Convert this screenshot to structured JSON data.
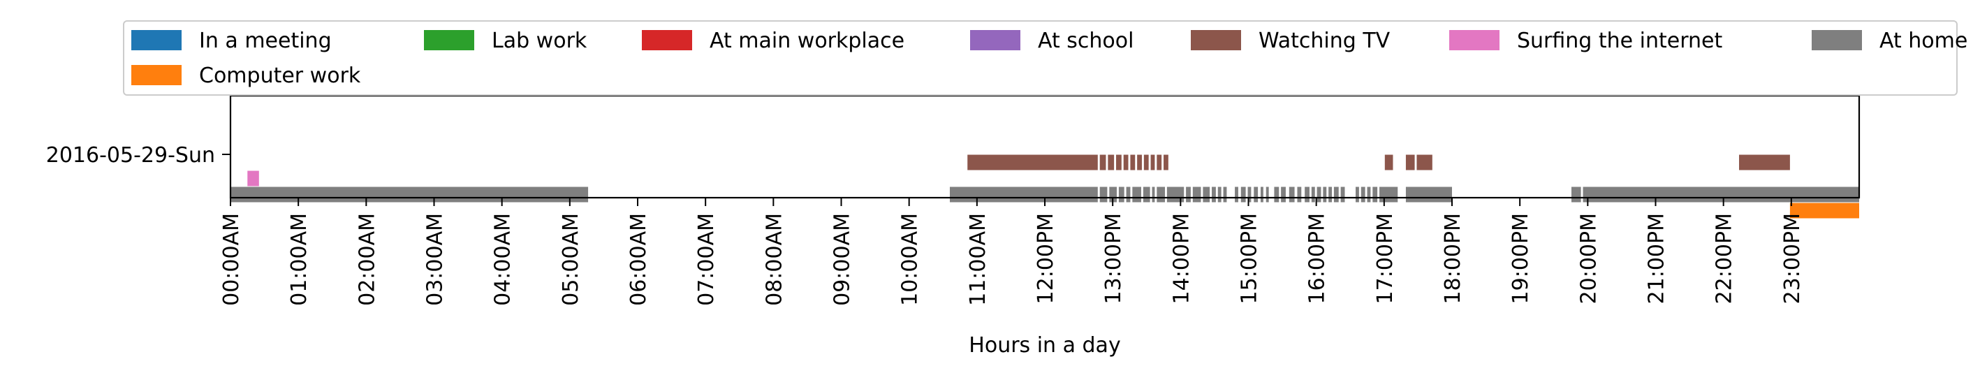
{
  "chart_data": {
    "type": "timeline",
    "title": "",
    "xlabel": "Hours in a day",
    "ylabel": "",
    "xlim": [
      0,
      24
    ],
    "grid": false,
    "legend_position": "top",
    "rows": [
      "2016-05-29-Sun"
    ],
    "x_ticks": [
      {
        "value": 0,
        "label": "00:00AM"
      },
      {
        "value": 1,
        "label": "01:00AM"
      },
      {
        "value": 2,
        "label": "02:00AM"
      },
      {
        "value": 3,
        "label": "03:00AM"
      },
      {
        "value": 4,
        "label": "04:00AM"
      },
      {
        "value": 5,
        "label": "05:00AM"
      },
      {
        "value": 6,
        "label": "06:00AM"
      },
      {
        "value": 7,
        "label": "07:00AM"
      },
      {
        "value": 8,
        "label": "08:00AM"
      },
      {
        "value": 9,
        "label": "09:00AM"
      },
      {
        "value": 10,
        "label": "10:00AM"
      },
      {
        "value": 11,
        "label": "11:00AM"
      },
      {
        "value": 12,
        "label": "12:00PM"
      },
      {
        "value": 13,
        "label": "13:00PM"
      },
      {
        "value": 14,
        "label": "14:00PM"
      },
      {
        "value": 15,
        "label": "15:00PM"
      },
      {
        "value": 16,
        "label": "16:00PM"
      },
      {
        "value": 17,
        "label": "17:00PM"
      },
      {
        "value": 18,
        "label": "18:00PM"
      },
      {
        "value": 19,
        "label": "19:00PM"
      },
      {
        "value": 20,
        "label": "20:00PM"
      },
      {
        "value": 21,
        "label": "21:00PM"
      },
      {
        "value": 22,
        "label": "22:00PM"
      },
      {
        "value": 23,
        "label": "23:00PM"
      }
    ],
    "series": [
      {
        "name": "In a meeting",
        "color": "#1f77b4",
        "segments": []
      },
      {
        "name": "Lab work",
        "color": "#2ca02c",
        "segments": []
      },
      {
        "name": "At main workplace",
        "color": "#d62728",
        "segments": []
      },
      {
        "name": "At school",
        "color": "#9467bd",
        "segments": []
      },
      {
        "name": "Watching TV",
        "color": "#8c564b",
        "segments": [
          [
            10.86,
            12.78
          ],
          [
            12.81,
            12.9
          ],
          [
            12.93,
            13.02
          ],
          [
            13.05,
            13.13
          ],
          [
            13.16,
            13.23
          ],
          [
            13.26,
            13.33
          ],
          [
            13.36,
            13.43
          ],
          [
            13.46,
            13.53
          ],
          [
            13.56,
            13.62
          ],
          [
            13.65,
            13.72
          ],
          [
            13.75,
            13.82
          ],
          [
            17.01,
            17.13
          ],
          [
            17.32,
            17.45
          ],
          [
            17.48,
            17.71
          ],
          [
            22.23,
            22.98
          ]
        ]
      },
      {
        "name": "Surfing the internet",
        "color": "#e377c2",
        "segments": [
          [
            0.25,
            0.42
          ]
        ]
      },
      {
        "name": "At home",
        "color": "#7f7f7f",
        "segments": [
          [
            0.0,
            5.27
          ],
          [
            10.6,
            12.78
          ],
          [
            12.81,
            12.92
          ],
          [
            12.95,
            13.06
          ],
          [
            13.09,
            13.17
          ],
          [
            13.2,
            13.26
          ],
          [
            13.29,
            13.42
          ],
          [
            13.45,
            13.55
          ],
          [
            13.58,
            13.62
          ],
          [
            13.65,
            13.77
          ],
          [
            13.8,
            14.05
          ],
          [
            14.08,
            14.15
          ],
          [
            14.18,
            14.3
          ],
          [
            14.33,
            14.43
          ],
          [
            14.46,
            14.52
          ],
          [
            14.55,
            14.6
          ],
          [
            14.63,
            14.68
          ],
          [
            14.8,
            14.85
          ],
          [
            14.89,
            14.96
          ],
          [
            14.99,
            15.04
          ],
          [
            15.08,
            15.14
          ],
          [
            15.18,
            15.22
          ],
          [
            15.26,
            15.3
          ],
          [
            15.38,
            15.45
          ],
          [
            15.48,
            15.55
          ],
          [
            15.6,
            15.68
          ],
          [
            15.72,
            15.78
          ],
          [
            15.83,
            15.9
          ],
          [
            15.93,
            15.98
          ],
          [
            16.01,
            16.07
          ],
          [
            16.1,
            16.15
          ],
          [
            16.18,
            16.23
          ],
          [
            16.26,
            16.33
          ],
          [
            16.36,
            16.42
          ],
          [
            16.58,
            16.63
          ],
          [
            16.66,
            16.72
          ],
          [
            16.75,
            16.8
          ],
          [
            16.83,
            16.9
          ],
          [
            16.93,
            17.2
          ],
          [
            17.32,
            18.0
          ],
          [
            19.76,
            19.9
          ],
          [
            19.93,
            24.0
          ]
        ]
      },
      {
        "name": "Computer work",
        "color": "#ff7f0e",
        "segments": [
          [
            22.98,
            24.0
          ]
        ]
      }
    ]
  }
}
